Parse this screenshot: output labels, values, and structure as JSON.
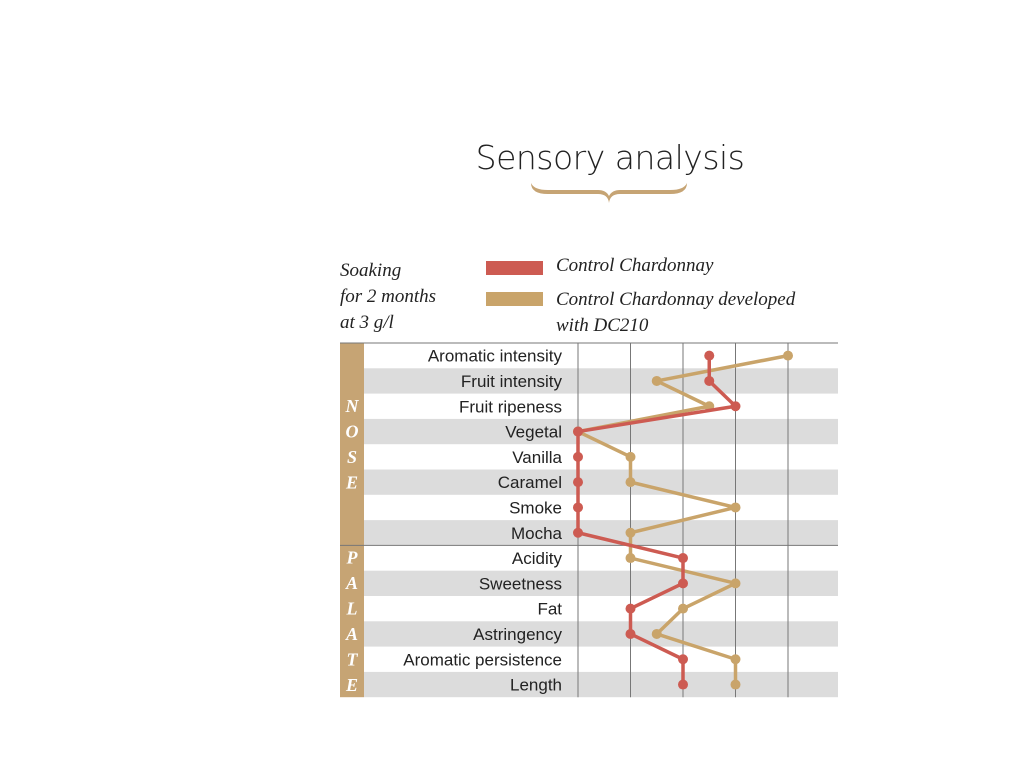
{
  "title": "Sensory analysis",
  "note": {
    "lines": [
      "Soaking",
      "for 2 months",
      "at 3 g/l"
    ]
  },
  "colors": {
    "control": "#cd5b52",
    "dc210": "#c9a46a",
    "band": "#c6a474",
    "stripe": "#dcdcdc",
    "grid": "#777777"
  },
  "legend": {
    "control_label": "Control Chardonnay",
    "dc210_label_line1": "Control Chardonnay developed",
    "dc210_label_line2": "with DC210"
  },
  "chart_data": {
    "type": "line",
    "orientation": "horizontal-profile",
    "categories": [
      "Aromatic intensity",
      "Fruit intensity",
      "Fruit ripeness",
      "Vegetal",
      "Vanilla",
      "Caramel",
      "Smoke",
      "Mocha",
      "Acidity",
      "Sweetness",
      "Fat",
      "Astringency",
      "Aromatic persistence",
      "Length"
    ],
    "sections": [
      {
        "name": "NOSE",
        "letters": [
          "N",
          "O",
          "S",
          "E"
        ],
        "start": 0,
        "end": 7
      },
      {
        "name": "PALATE",
        "letters": [
          "P",
          "A",
          "L",
          "A",
          "T",
          "E"
        ],
        "start": 8,
        "end": 13
      }
    ],
    "series": [
      {
        "name": "Control Chardonnay",
        "color": "#cd5b52",
        "values": [
          2.5,
          2.5,
          3,
          0,
          0,
          0,
          0,
          0,
          2,
          2,
          1,
          1,
          2,
          2
        ]
      },
      {
        "name": "Control Chardonnay developed with DC210",
        "color": "#c9a46a",
        "values": [
          4,
          1.5,
          2.5,
          0,
          1,
          1,
          3,
          1,
          1,
          3,
          2,
          1.5,
          3,
          3
        ]
      }
    ],
    "xlim": [
      0,
      5
    ],
    "grid": true
  }
}
